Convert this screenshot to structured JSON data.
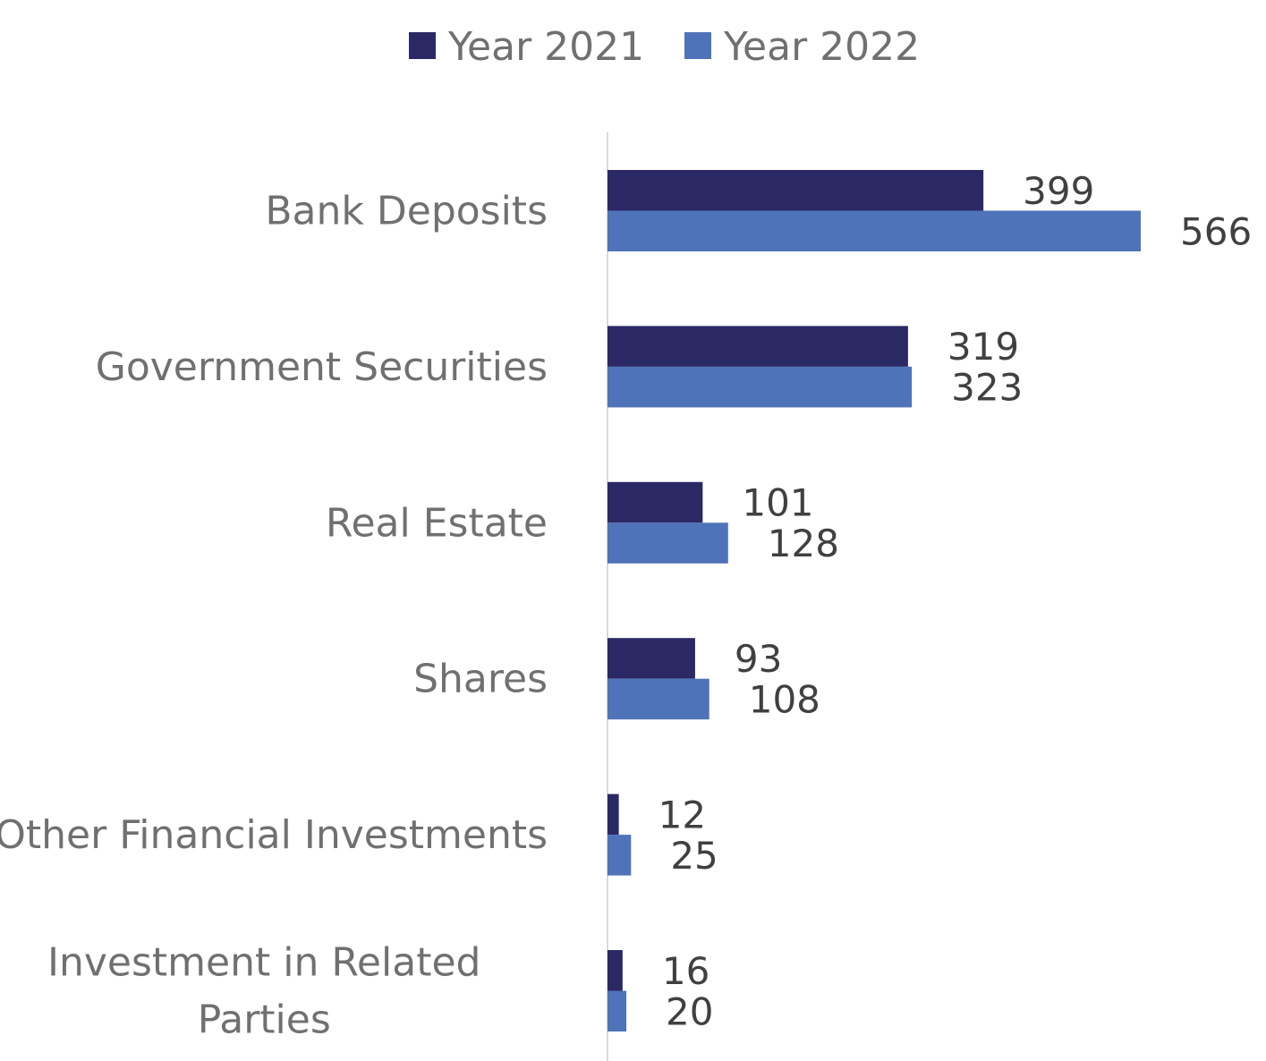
{
  "chart_data": {
    "type": "bar",
    "orientation": "horizontal",
    "title": "",
    "xlabel": "",
    "ylabel": "",
    "categories": [
      [
        "Bank Deposits"
      ],
      [
        "Government Securities"
      ],
      [
        "Real Estate"
      ],
      [
        "Shares"
      ],
      [
        "Other Financial Investments"
      ],
      [
        "Investment in Related",
        "Parties"
      ]
    ],
    "series": [
      {
        "name": "Year 2021",
        "color": "#2b2866",
        "values": [
          399,
          319,
          101,
          93,
          12,
          16
        ]
      },
      {
        "name": "Year 2022",
        "color": "#4f73b9",
        "values": [
          566,
          323,
          128,
          108,
          25,
          20
        ]
      }
    ],
    "xlim": [
      0,
      600
    ],
    "grid": false,
    "legend": "top-center",
    "data_labels": true,
    "axis_color": "#d9d9d9"
  }
}
